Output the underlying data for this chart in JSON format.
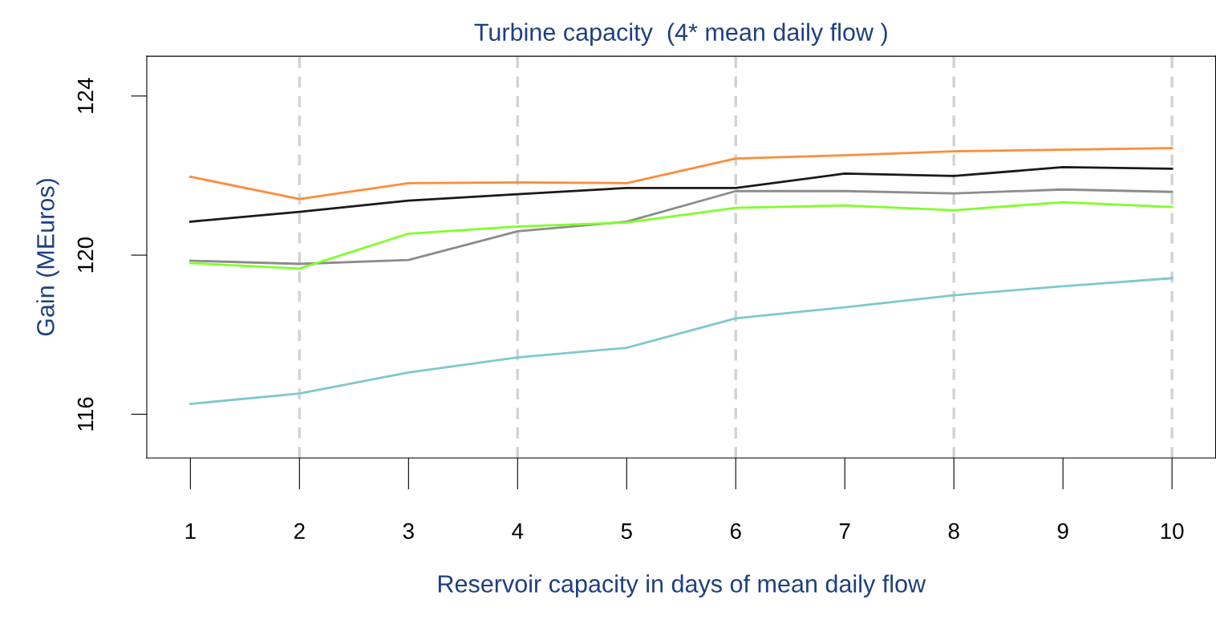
{
  "chart_data": {
    "type": "line",
    "title": "Turbine capacity  (4* mean daily flow )",
    "xlabel": "Reservoir capacity in days of mean daily flow",
    "ylabel": "Gain (MEuros)",
    "x": [
      1,
      2,
      3,
      4,
      5,
      6,
      7,
      8,
      9,
      10
    ],
    "series": [
      {
        "color": "#ff8c3a",
        "values": [
          121.97,
          121.41,
          121.81,
          121.83,
          121.81,
          122.43,
          122.51,
          122.61,
          122.65,
          122.69
        ]
      },
      {
        "color": "#1a1a1a",
        "values": [
          120.84,
          121.09,
          121.37,
          121.53,
          121.69,
          121.69,
          122.05,
          121.99,
          122.21,
          122.17
        ]
      },
      {
        "color": "#8c8c8c",
        "values": [
          119.86,
          119.78,
          119.88,
          120.6,
          120.84,
          121.61,
          121.61,
          121.55,
          121.65,
          121.59
        ]
      },
      {
        "color": "#7fff2a",
        "values": [
          119.8,
          119.66,
          120.54,
          120.72,
          120.82,
          121.19,
          121.25,
          121.13,
          121.33,
          121.21
        ]
      },
      {
        "color": "#7fc8d0",
        "values": [
          116.26,
          116.52,
          117.05,
          117.43,
          117.67,
          118.41,
          118.69,
          118.99,
          119.22,
          119.42
        ]
      }
    ],
    "xlim": [
      0.6,
      10.4
    ],
    "ylim": [
      114.9,
      125
    ],
    "xticks": [
      1,
      2,
      3,
      4,
      5,
      6,
      7,
      8,
      9,
      10
    ],
    "yticks": [
      116,
      120,
      124
    ],
    "ref_lines": [
      {
        "axis": "x",
        "value": 2,
        "color": "#d3d3d3",
        "line_style": "dashed"
      },
      {
        "axis": "x",
        "value": 4,
        "color": "#d3d3d3",
        "line_style": "dashed"
      },
      {
        "axis": "x",
        "value": 6,
        "color": "#d3d3d3",
        "line_style": "dashed"
      },
      {
        "axis": "x",
        "value": 8,
        "color": "#d3d3d3",
        "line_style": "dashed"
      },
      {
        "axis": "x",
        "value": 10,
        "color": "#d3d3d3",
        "line_style": "dashed"
      }
    ],
    "grid": false,
    "legend": false,
    "marker": "none",
    "line_style": "solid"
  }
}
